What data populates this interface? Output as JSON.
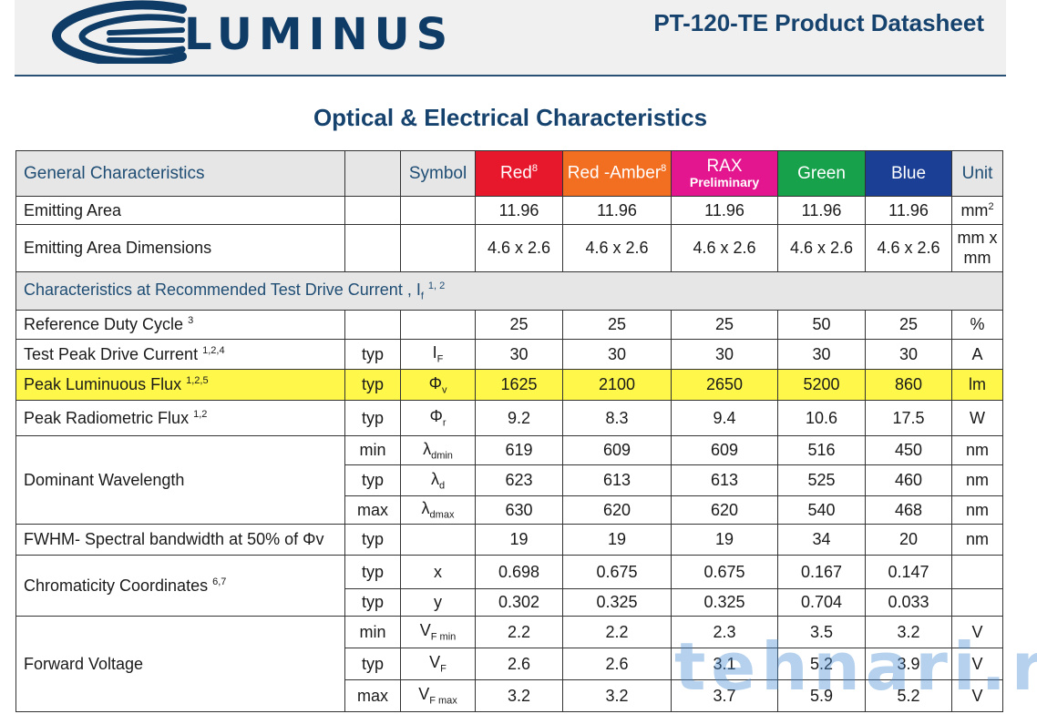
{
  "header": {
    "brand": "LUMINUS",
    "doc_title": "PT-120-TE Product Datasheet",
    "brand_color": "#0f3c66"
  },
  "section_title": "Optical & Electrical Characteristics",
  "table": {
    "headers": {
      "general": "General Characteristics",
      "symbol": "Symbol",
      "red": "Red",
      "red_sup": "8",
      "amber": "Red -Amber",
      "amber_sup": "8",
      "rax": "RAX",
      "rax_sub": "Preliminary",
      "green": "Green",
      "blue": "Blue",
      "unit": "Unit"
    },
    "header_colors": {
      "red": "#e8182c",
      "amber": "#f26f22",
      "rax": "#e3158f",
      "green": "#16a14a",
      "blue": "#1b3f94"
    },
    "emitting_area": {
      "label": "Emitting Area",
      "values": [
        "11.96",
        "11.96",
        "11.96",
        "11.96",
        "11.96"
      ],
      "unit": "mm",
      "unit_sup": "2"
    },
    "emitting_dims": {
      "label": "Emitting Area Dimensions",
      "values": [
        "4.6 x 2.6",
        "4.6 x 2.6",
        "4.6 x 2.6",
        "4.6 x 2.6",
        "4.6 x 2.6"
      ],
      "unit_line1": "mm x",
      "unit_line2": "mm"
    },
    "section": {
      "label": "Characteristics at Recommended Test Drive Current , I",
      "sub": "f",
      "sup": "1, 2"
    },
    "duty": {
      "label": "Reference Duty Cycle",
      "sup": "3",
      "values": [
        "25",
        "25",
        "25",
        "50",
        "25"
      ],
      "unit": "%"
    },
    "peak_current": {
      "label": "Test Peak Drive Current",
      "sup": "1,2,4",
      "type": "typ",
      "symbol": "I",
      "symbol_sub": "F",
      "values": [
        "30",
        "30",
        "30",
        "30",
        "30"
      ],
      "unit": "A"
    },
    "lum_flux": {
      "label": "Peak Luminuous Flux",
      "sup": "1,2,5",
      "type": "typ",
      "symbol": "Φ",
      "symbol_sub": "v",
      "values": [
        "1625",
        "2100",
        "2650",
        "5200",
        "860"
      ],
      "unit": "lm"
    },
    "rad_flux": {
      "label": "Peak Radiometric Flux",
      "sup": "1,2",
      "type": "typ",
      "symbol": "Φ",
      "symbol_sub": "r",
      "values": [
        "9.2",
        "8.3",
        "9.4",
        "10.6",
        "17.5"
      ],
      "unit": "W"
    },
    "wavelength": {
      "label": "Dominant Wavelength",
      "rows": [
        {
          "type": "min",
          "symbol": "λ",
          "symbol_sub": "dmin",
          "values": [
            "619",
            "609",
            "609",
            "516",
            "450"
          ],
          "unit": "nm"
        },
        {
          "type": "typ",
          "symbol": "λ",
          "symbol_sub": "d",
          "values": [
            "623",
            "613",
            "613",
            "525",
            "460"
          ],
          "unit": "nm"
        },
        {
          "type": "max",
          "symbol": "λ",
          "symbol_sub": "dmax",
          "values": [
            "630",
            "620",
            "620",
            "540",
            "468"
          ],
          "unit": "nm"
        }
      ]
    },
    "fwhm": {
      "label": "FWHM- Spectral bandwidth at 50% of Φv",
      "type": "typ",
      "values": [
        "19",
        "19",
        "19",
        "34",
        "20"
      ],
      "unit": "nm"
    },
    "chroma": {
      "label": "Chromaticity Coordinates",
      "sup": "6,7",
      "rows": [
        {
          "type": "typ",
          "symbol": "x",
          "values": [
            "0.698",
            "0.675",
            "0.675",
            "0.167",
            "0.147"
          ]
        },
        {
          "type": "typ",
          "symbol": "y",
          "values": [
            "0.302",
            "0.325",
            "0.325",
            "0.704",
            "0.033"
          ]
        }
      ]
    },
    "voltage": {
      "label": "Forward Voltage",
      "rows": [
        {
          "type": "min",
          "symbol": "V",
          "symbol_sub": "F min",
          "values": [
            "2.2",
            "2.2",
            "2.3",
            "3.5",
            "3.2"
          ],
          "unit": "V"
        },
        {
          "type": "typ",
          "symbol": "V",
          "symbol_sub": "F",
          "values": [
            "2.6",
            "2.6",
            "3.1",
            "5.2",
            "3.9"
          ],
          "unit": "V"
        },
        {
          "type": "max",
          "symbol": "V",
          "symbol_sub": "F max",
          "values": [
            "3.2",
            "3.2",
            "3.7",
            "5.9",
            "5.2"
          ],
          "unit": "V"
        }
      ]
    }
  },
  "watermark": "tehnari.ru"
}
